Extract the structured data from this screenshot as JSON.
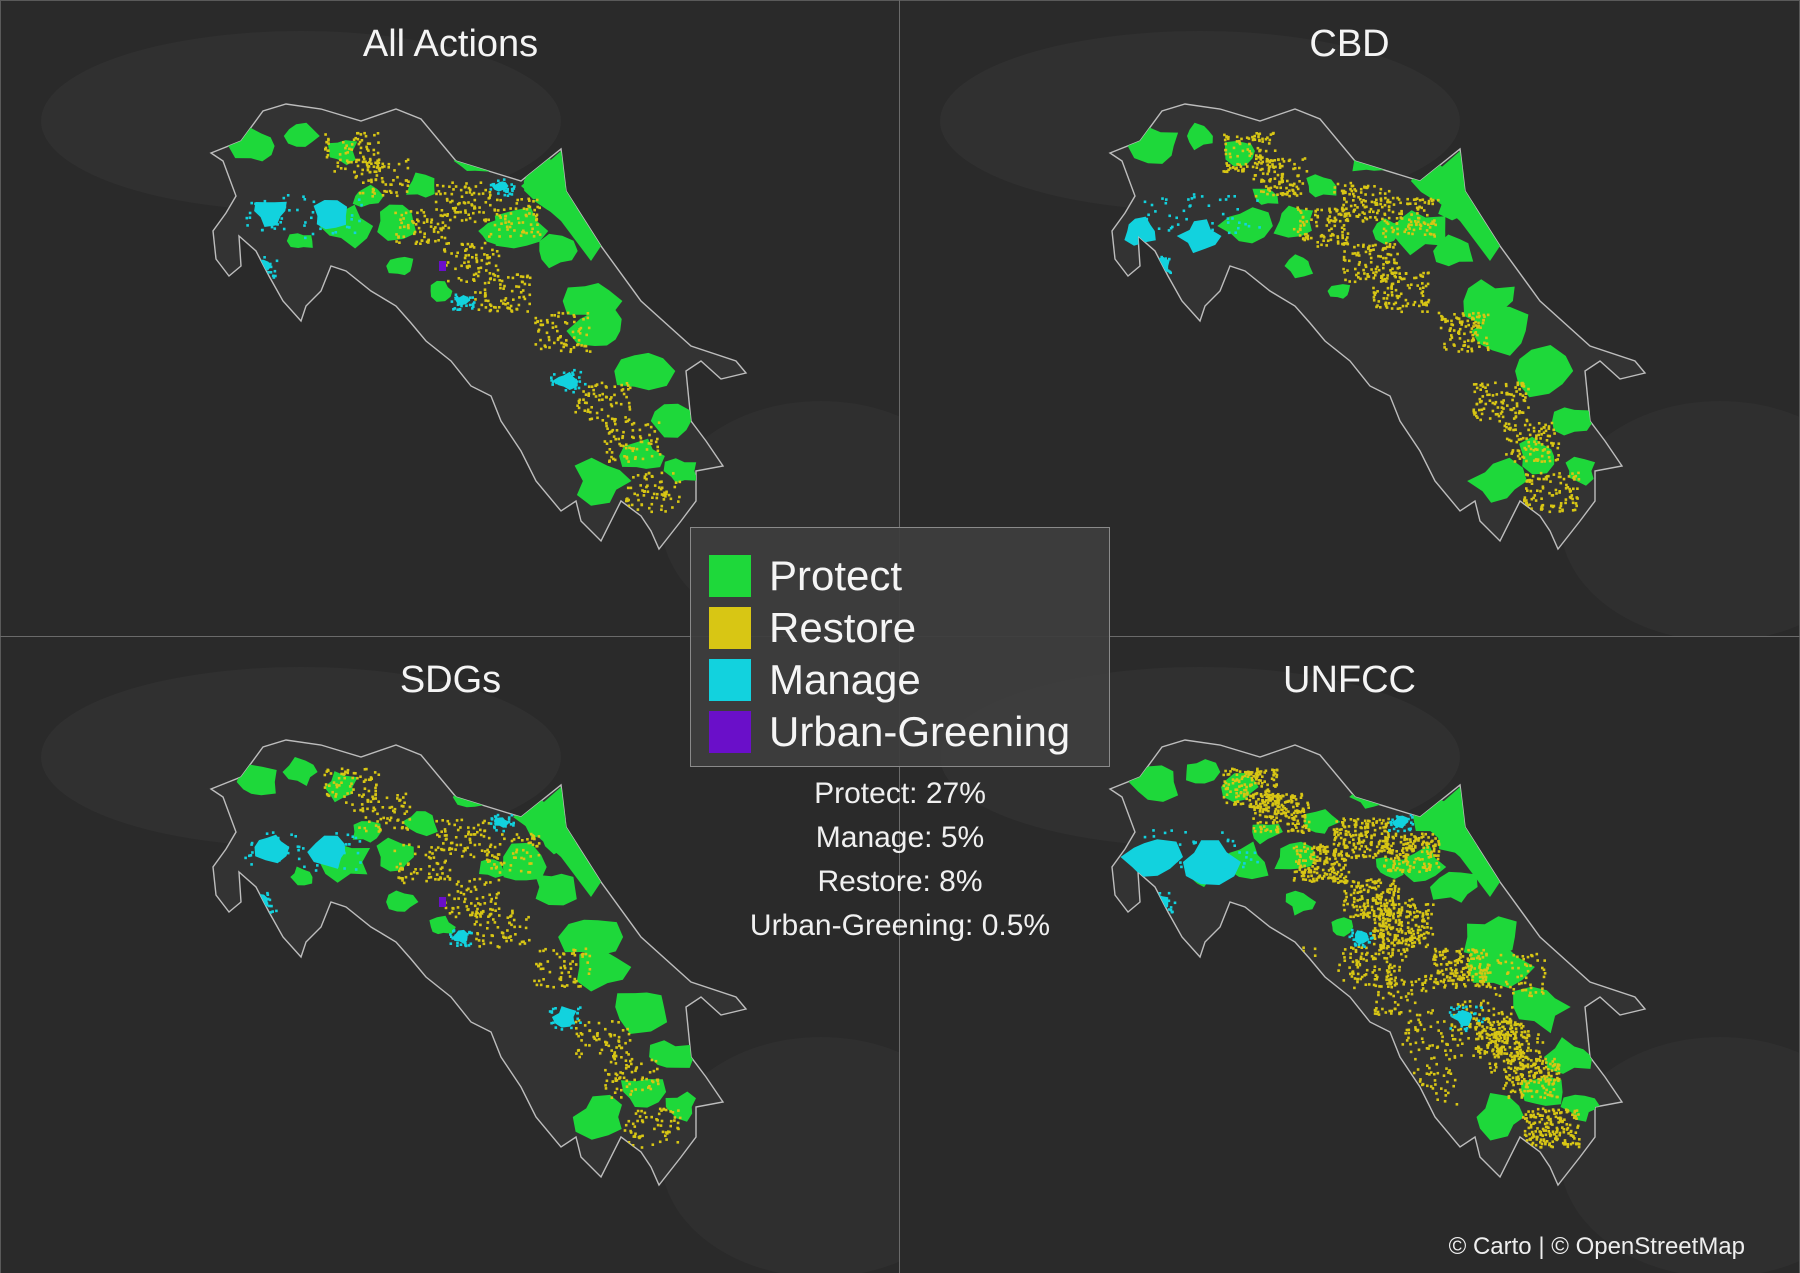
{
  "panels": [
    {
      "id": "all",
      "title": "All Actions"
    },
    {
      "id": "cbd",
      "title": "CBD"
    },
    {
      "id": "sdgs",
      "title": "SDGs"
    },
    {
      "id": "unfcc",
      "title": "UNFCC"
    }
  ],
  "legend": {
    "items": [
      {
        "label": "Protect",
        "color": "#1ed83a"
      },
      {
        "label": "Restore",
        "color": "#d8c614"
      },
      {
        "label": "Manage",
        "color": "#12d2de"
      },
      {
        "label": "Urban-Greening",
        "color": "#6a0fc9"
      }
    ]
  },
  "stats": {
    "protect": "Protect: 27%",
    "manage": "Manage: 5%",
    "restore": "Restore: 8%",
    "urban": "Urban-Greening: 0.5%"
  },
  "attribution": "© Carto | © OpenStreetMap"
}
